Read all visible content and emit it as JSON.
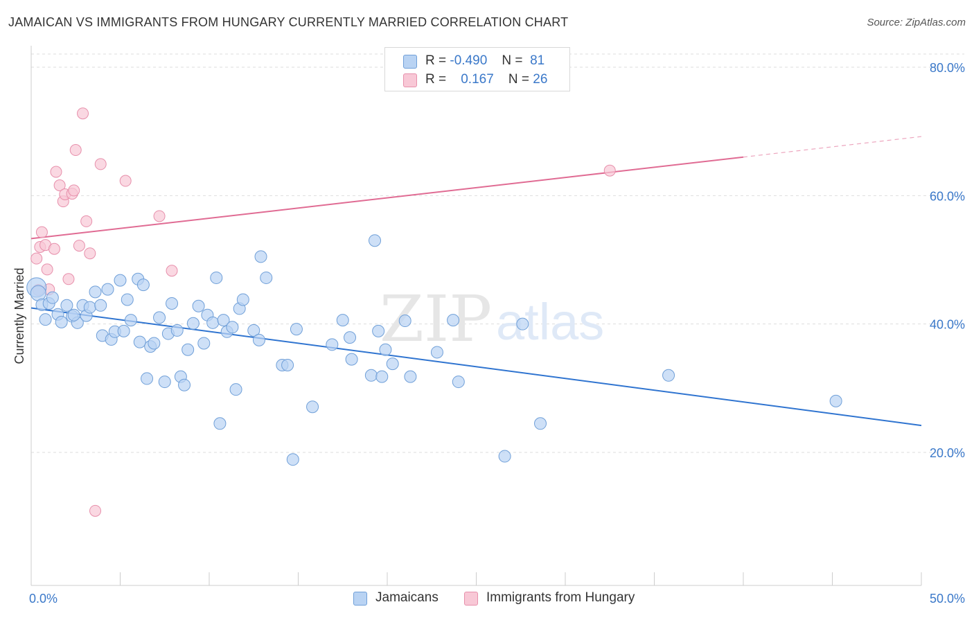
{
  "title": "JAMAICAN VS IMMIGRANTS FROM HUNGARY CURRENTLY MARRIED CORRELATION CHART",
  "source": "Source: ZipAtlas.com",
  "watermark": {
    "zip": "ZIP",
    "atlas": "atlas"
  },
  "colors": {
    "blue_fill": "#b9d3f3",
    "blue_stroke": "#6f9fd8",
    "blue_line": "#2f74d0",
    "pink_fill": "#f8c8d6",
    "pink_stroke": "#e78fab",
    "pink_line": "#e06b93",
    "axis_label": "#3a78c9",
    "grid": "#dddddd"
  },
  "legend": {
    "rows": [
      {
        "r_label": "R =",
        "r_value": "-0.490",
        "n_label": "N =",
        "n_value": "81"
      },
      {
        "r_label": "R =",
        "r_value": "0.167",
        "n_label": "N =",
        "n_value": "26"
      }
    ]
  },
  "bottom_legend": {
    "series1": "Jamaicans",
    "series2": "Immigrants from Hungary"
  },
  "chart_data": {
    "type": "scatter",
    "title": "JAMAICAN VS IMMIGRANTS FROM HUNGARY CURRENTLY MARRIED CORRELATION CHART",
    "xlabel": "",
    "ylabel": "Currently Married",
    "xlim": [
      0,
      50
    ],
    "ylim": [
      0,
      82
    ],
    "x_tick_labels": [
      "0.0%",
      "50.0%"
    ],
    "y_ticks": [
      20,
      40,
      60,
      80
    ],
    "y_tick_labels": [
      "20.0%",
      "40.0%",
      "60.0%",
      "80.0%"
    ],
    "grid": true,
    "legend_position": "top-center",
    "series": [
      {
        "name": "Jamaicans",
        "R": -0.49,
        "N": 81,
        "trend": {
          "x": [
            0,
            50
          ],
          "y": [
            42.5,
            24.2
          ]
        },
        "points": [
          [
            0.3,
            45.7
          ],
          [
            0.4,
            44.8
          ],
          [
            0.6,
            43.0
          ],
          [
            0.8,
            40.7
          ],
          [
            1.0,
            43.2
          ],
          [
            1.2,
            44.1
          ],
          [
            1.5,
            41.5
          ],
          [
            1.7,
            40.3
          ],
          [
            2.0,
            42.9
          ],
          [
            2.3,
            41.2
          ],
          [
            2.6,
            40.2
          ],
          [
            2.4,
            41.4
          ],
          [
            2.9,
            42.9
          ],
          [
            3.1,
            41.3
          ],
          [
            3.3,
            42.6
          ],
          [
            3.6,
            45.0
          ],
          [
            3.9,
            42.9
          ],
          [
            4.0,
            38.2
          ],
          [
            4.3,
            45.4
          ],
          [
            4.5,
            37.6
          ],
          [
            4.7,
            38.8
          ],
          [
            5.0,
            46.8
          ],
          [
            5.2,
            38.9
          ],
          [
            5.4,
            43.8
          ],
          [
            5.6,
            40.6
          ],
          [
            6.0,
            47.0
          ],
          [
            6.1,
            37.2
          ],
          [
            6.3,
            46.1
          ],
          [
            6.5,
            31.5
          ],
          [
            6.7,
            36.5
          ],
          [
            6.9,
            37.0
          ],
          [
            7.2,
            41.0
          ],
          [
            7.5,
            31.0
          ],
          [
            7.7,
            38.5
          ],
          [
            7.9,
            43.2
          ],
          [
            8.2,
            39.0
          ],
          [
            8.4,
            31.8
          ],
          [
            8.6,
            30.5
          ],
          [
            8.8,
            36.0
          ],
          [
            9.1,
            40.1
          ],
          [
            9.4,
            42.8
          ],
          [
            9.7,
            37.0
          ],
          [
            9.9,
            41.4
          ],
          [
            10.2,
            40.2
          ],
          [
            10.4,
            47.2
          ],
          [
            10.6,
            24.5
          ],
          [
            10.8,
            40.6
          ],
          [
            11.0,
            38.8
          ],
          [
            11.3,
            39.5
          ],
          [
            11.5,
            29.8
          ],
          [
            11.7,
            42.4
          ],
          [
            11.9,
            43.8
          ],
          [
            12.5,
            39.0
          ],
          [
            12.8,
            37.5
          ],
          [
            12.9,
            50.5
          ],
          [
            13.2,
            47.2
          ],
          [
            14.1,
            33.6
          ],
          [
            14.4,
            33.6
          ],
          [
            14.7,
            18.9
          ],
          [
            14.9,
            39.2
          ],
          [
            15.8,
            27.1
          ],
          [
            16.9,
            36.8
          ],
          [
            17.5,
            40.6
          ],
          [
            17.9,
            37.9
          ],
          [
            18.0,
            34.5
          ],
          [
            19.1,
            32.0
          ],
          [
            19.3,
            53.0
          ],
          [
            19.5,
            38.9
          ],
          [
            19.7,
            31.8
          ],
          [
            19.9,
            36.0
          ],
          [
            20.3,
            33.8
          ],
          [
            21.3,
            31.8
          ],
          [
            22.8,
            35.6
          ],
          [
            23.7,
            40.6
          ],
          [
            24.0,
            31.0
          ],
          [
            26.6,
            19.4
          ],
          [
            27.6,
            40.0
          ],
          [
            28.6,
            24.5
          ],
          [
            35.8,
            32.0
          ],
          [
            45.2,
            28.0
          ],
          [
            21.0,
            40.5
          ]
        ]
      },
      {
        "name": "Immigrants from Hungary",
        "R": 0.167,
        "N": 26,
        "trend": {
          "x": [
            0,
            40
          ],
          "y": [
            53.3,
            66.0
          ],
          "dashed_to": [
            50,
            69.2
          ]
        },
        "points": [
          [
            0.3,
            50.2
          ],
          [
            0.4,
            45.3
          ],
          [
            0.5,
            52.0
          ],
          [
            0.6,
            54.3
          ],
          [
            0.8,
            52.3
          ],
          [
            0.9,
            48.5
          ],
          [
            1.0,
            45.4
          ],
          [
            1.3,
            51.7
          ],
          [
            1.4,
            63.7
          ],
          [
            1.6,
            61.6
          ],
          [
            1.8,
            59.1
          ],
          [
            1.9,
            60.2
          ],
          [
            2.1,
            47.0
          ],
          [
            2.3,
            60.3
          ],
          [
            2.4,
            60.8
          ],
          [
            2.5,
            67.1
          ],
          [
            2.7,
            52.2
          ],
          [
            2.9,
            72.8
          ],
          [
            3.1,
            56.0
          ],
          [
            3.3,
            51.0
          ],
          [
            3.6,
            10.9
          ],
          [
            3.9,
            64.9
          ],
          [
            5.3,
            62.3
          ],
          [
            7.2,
            56.8
          ],
          [
            7.9,
            48.3
          ],
          [
            32.5,
            63.9
          ]
        ]
      }
    ]
  }
}
